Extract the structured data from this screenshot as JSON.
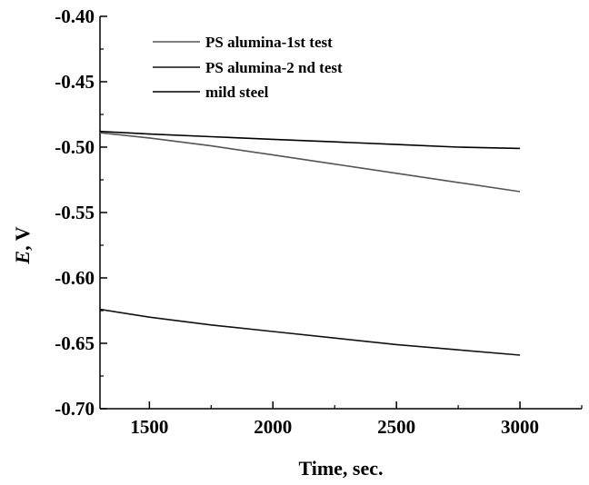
{
  "chart_data": {
    "type": "line",
    "xlabel": "Time, sec.",
    "ylabel_italic": "E",
    "ylabel_rest": ", V",
    "xlim": [
      1300,
      3250
    ],
    "ylim": [
      -0.7,
      -0.4
    ],
    "xticks": [
      1500,
      2000,
      2500,
      3000
    ],
    "xtick_labels": [
      "1500",
      "2000",
      "2500",
      "3000"
    ],
    "yticks": [
      -0.7,
      -0.65,
      -0.6,
      -0.55,
      -0.5,
      -0.45,
      -0.4
    ],
    "ytick_labels": [
      "-0.70",
      "-0.65",
      "-0.60",
      "-0.55",
      "-0.50",
      "-0.45",
      "-0.40"
    ],
    "grid": false,
    "legend_position": "top-center",
    "series": [
      {
        "name": "PS alumina-1st test",
        "color": "#555555",
        "x": [
          1300,
          1500,
          1750,
          2000,
          2250,
          2500,
          2750,
          3000
        ],
        "y": [
          -0.489,
          -0.493,
          -0.499,
          -0.506,
          -0.513,
          -0.52,
          -0.527,
          -0.534
        ]
      },
      {
        "name": "PS alumina-2 nd test",
        "color": "#111111",
        "x": [
          1300,
          1500,
          1750,
          2000,
          2250,
          2500,
          2750,
          3000
        ],
        "y": [
          -0.624,
          -0.63,
          -0.636,
          -0.641,
          -0.646,
          -0.651,
          -0.655,
          -0.659
        ]
      },
      {
        "name": "mild steel",
        "color": "#000000",
        "x": [
          1300,
          1500,
          1750,
          2000,
          2250,
          2500,
          2750,
          3000
        ],
        "y": [
          -0.488,
          -0.49,
          -0.492,
          -0.494,
          -0.496,
          -0.498,
          -0.5,
          -0.501
        ]
      }
    ]
  }
}
